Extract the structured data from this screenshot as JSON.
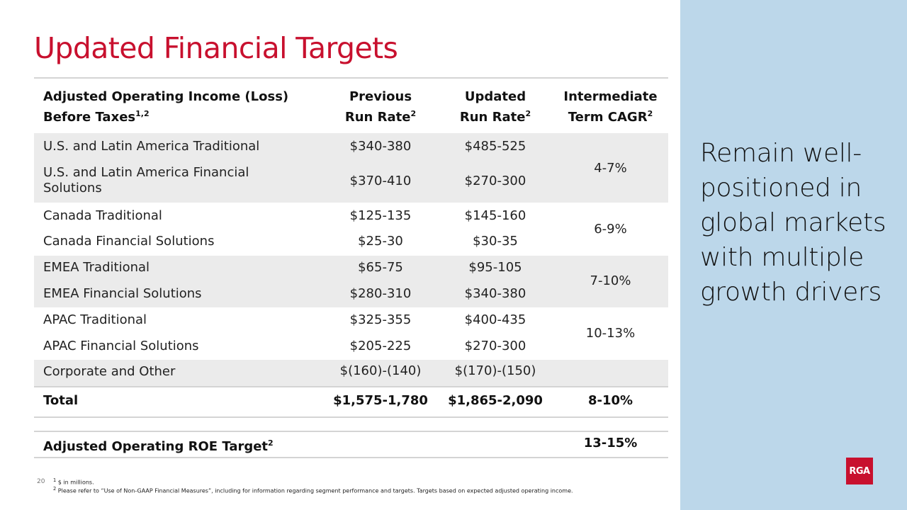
{
  "title": "Updated Financial Targets",
  "side_text": "Remain well-positioned in global markets with multiple growth drivers",
  "header": {
    "label_line1": "Adjusted Operating Income (Loss)",
    "label_line2": "Before Taxes",
    "label_sup": "1,2",
    "prev_line1": "Previous",
    "prev_line2": "Run Rate",
    "prev_sup": "2",
    "upd_line1": "Updated",
    "upd_line2": "Run Rate",
    "upd_sup": "2",
    "cagr_line1": "Intermediate",
    "cagr_line2": "Term CAGR",
    "cagr_sup": "2"
  },
  "rows": [
    {
      "label": "U.S. and Latin America Traditional",
      "prev": "$340-380",
      "upd": "$485-525"
    },
    {
      "label_line1": "U.S. and Latin America Financial",
      "label_line2": "Solutions",
      "prev": "$370-410",
      "upd": "$270-300"
    },
    {
      "label": "Canada Traditional",
      "prev": "$125-135",
      "upd": "$145-160"
    },
    {
      "label": "Canada Financial Solutions",
      "prev": "$25-30",
      "upd": "$30-35"
    },
    {
      "label": "EMEA Traditional",
      "prev": "$65-75",
      "upd": "$95-105"
    },
    {
      "label": "EMEA Financial Solutions",
      "prev": "$280-310",
      "upd": "$340-380"
    },
    {
      "label": "APAC Traditional",
      "prev": "$325-355",
      "upd": "$400-435"
    },
    {
      "label": "APAC Financial Solutions",
      "prev": "$205-225",
      "upd": "$270-300"
    },
    {
      "label": "Corporate and Other",
      "prev": "$(160)-(140)",
      "upd": "$(170)-(150)"
    }
  ],
  "cagr_groups": [
    "4-7%",
    "6-9%",
    "7-10%",
    "10-13%"
  ],
  "total": {
    "label": "Total",
    "prev": "$1,575-1,780",
    "upd": "$1,865-2,090",
    "cagr": "8-10%"
  },
  "roe": {
    "label": "Adjusted Operating ROE Target",
    "sup": "2",
    "value": "13-15%"
  },
  "footnotes": {
    "note1_sup": "1",
    "note1": "$ in millions.",
    "note2_sup": "2",
    "note2": "Please refer to “Use of Non-GAAP Financial Measures”, including for information regarding segment performance and targets. Targets based on expected adjusted operating income."
  },
  "page_number": "20",
  "logo_text": "RGA",
  "colors": {
    "title": "#c8102e",
    "side_panel": "#bcd7ea",
    "row_shade": "#ebebeb",
    "logo": "#c8102e"
  }
}
